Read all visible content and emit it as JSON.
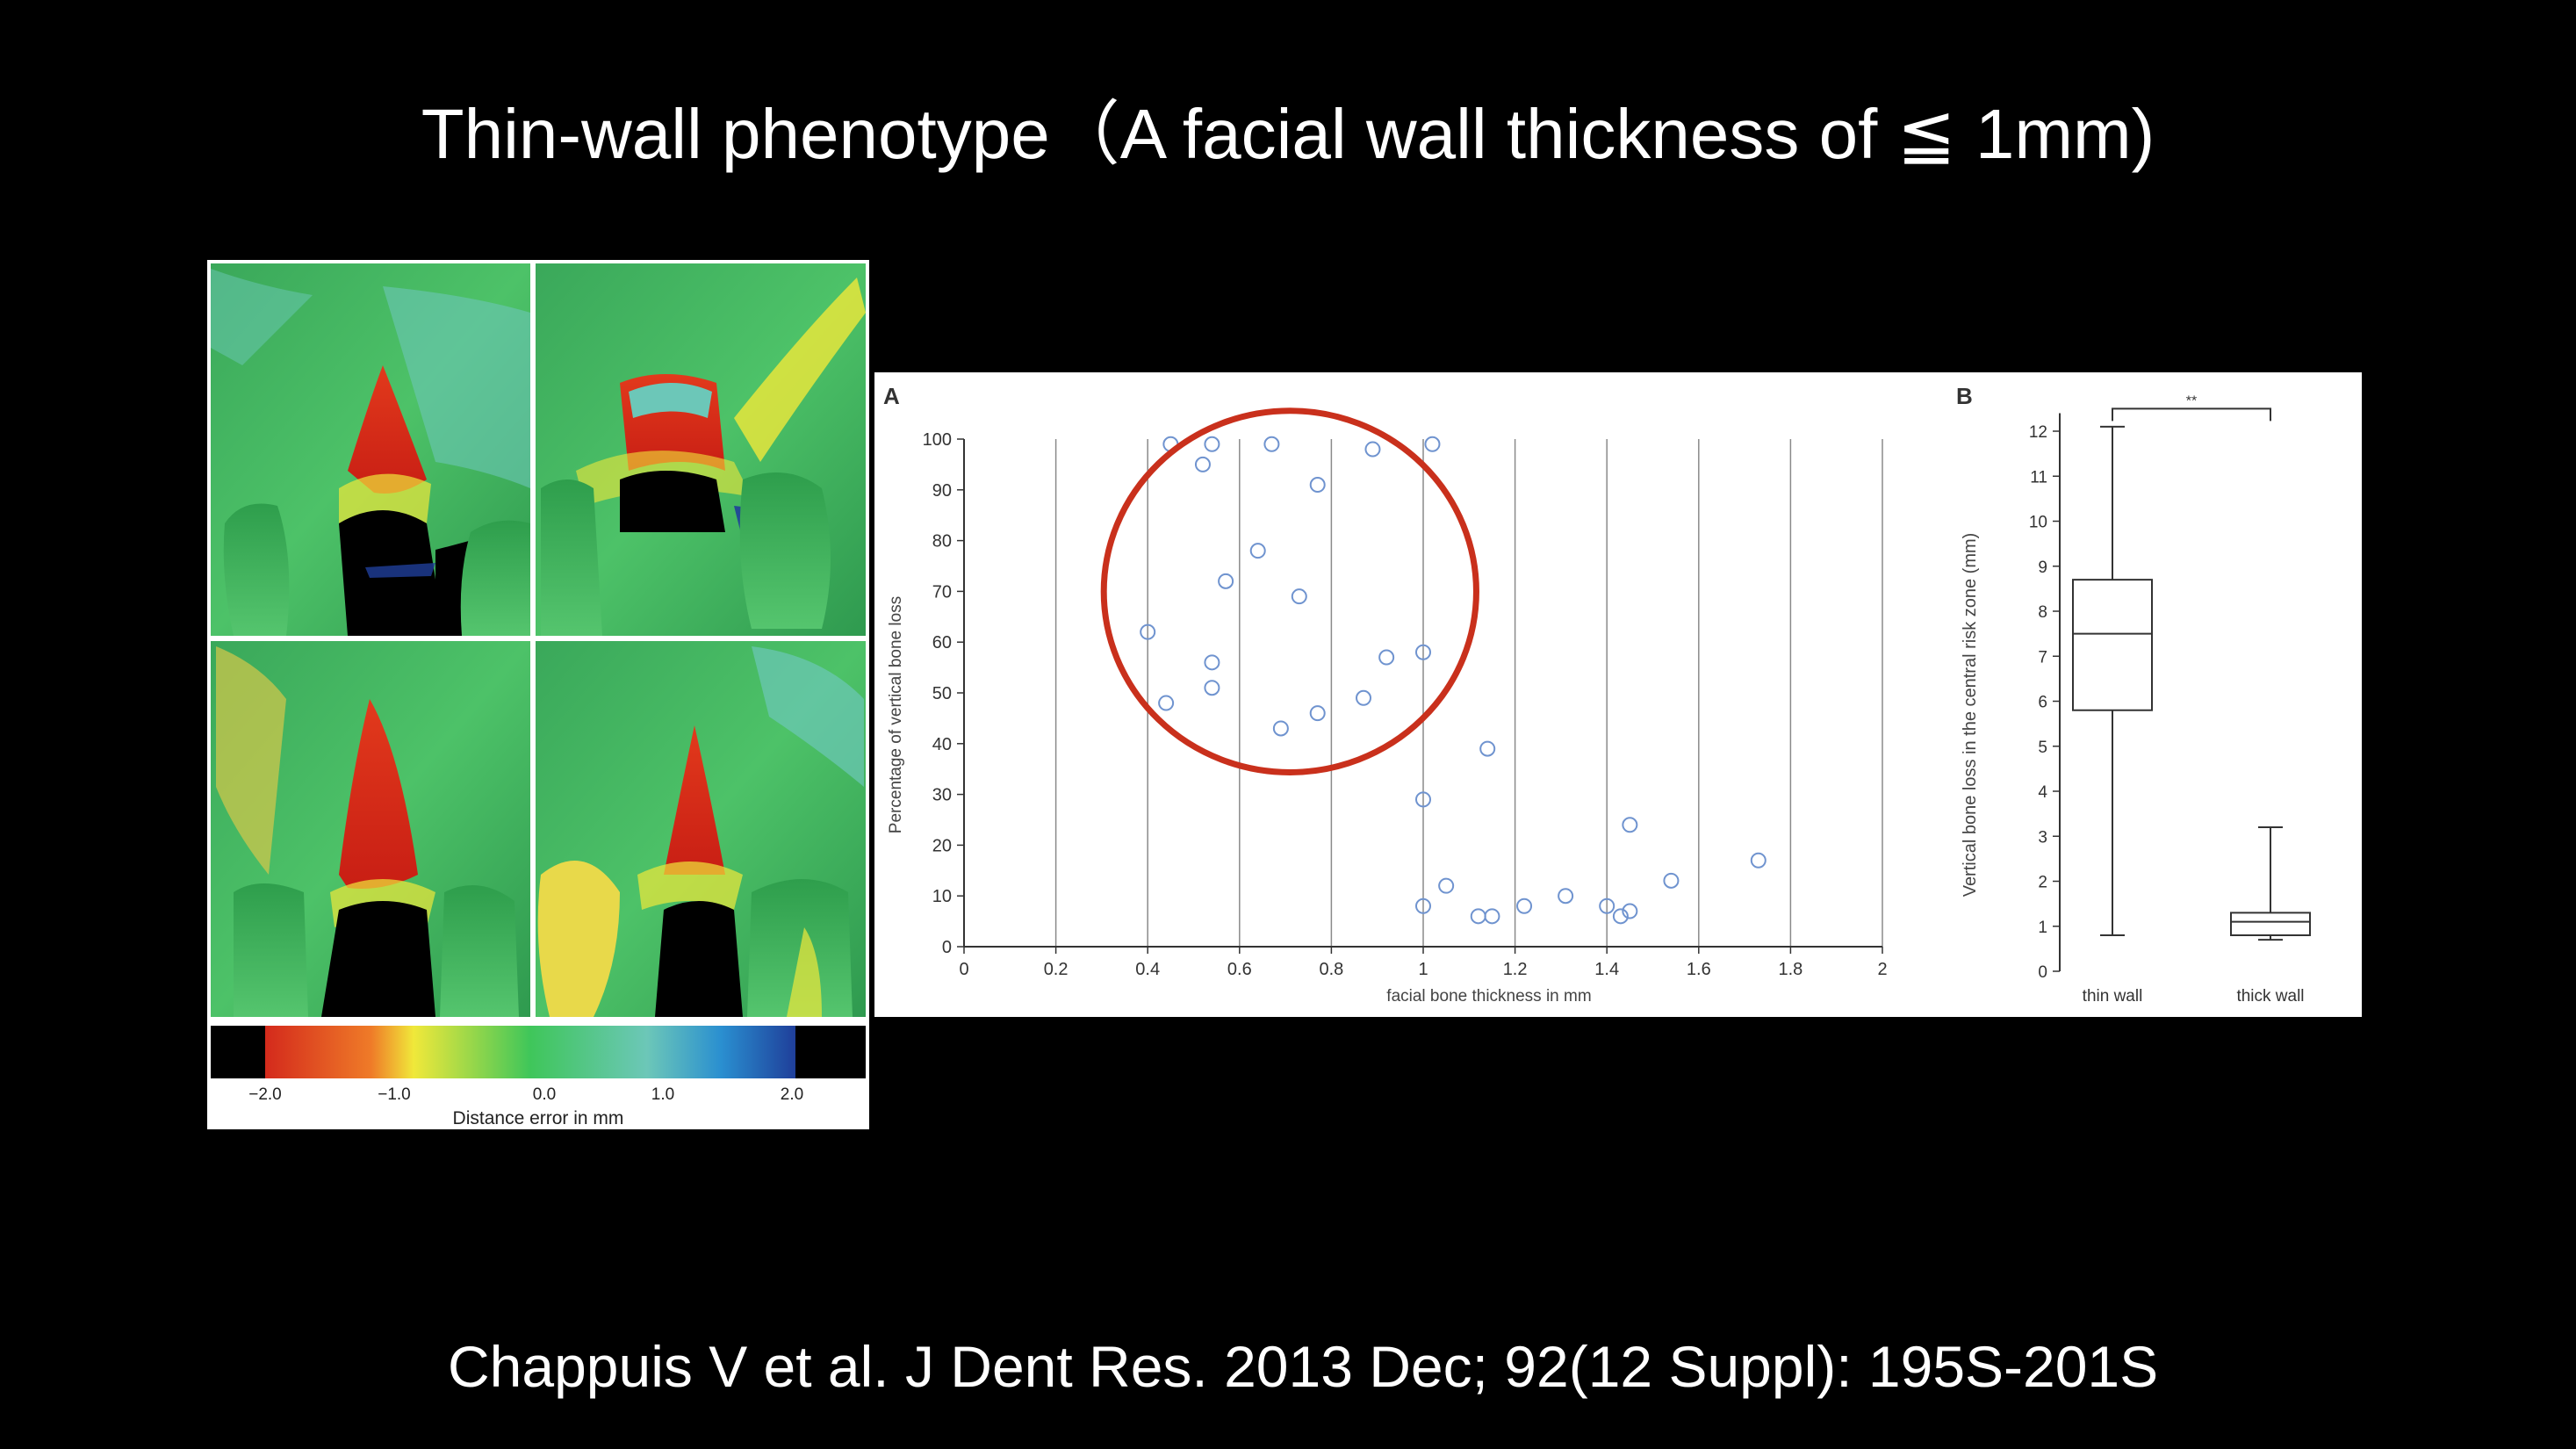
{
  "slide": {
    "title": "Thin-wall phenotype（A facial wall thickness of ≦ 1mm)",
    "citation": "Chappuis V et al. J Dent Res. 2013 Dec; 92(12 Suppl): 195S-201S"
  },
  "figure_left": {
    "colorbar_ticks": [
      "−2.0",
      "−1.0",
      "0.0",
      "1.0",
      "2.0"
    ],
    "colorbar_label": "Distance error in mm",
    "colors": [
      "#d42a1c",
      "#f0e83a",
      "#3fc65a",
      "#6cc7b8",
      "#1f3f9a"
    ]
  },
  "chart_data": [
    {
      "type": "scatter",
      "panel_label": "A",
      "xlabel": "facial bone thickness in mm",
      "ylabel": "Percentage of vertical bone loss",
      "xlim": [
        0,
        2
      ],
      "ylim": [
        0,
        100
      ],
      "x_ticks": [
        "0",
        "0.2",
        "0.4",
        "0.6",
        "0.8",
        "1",
        "1.2",
        "1.4",
        "1.6",
        "1.8",
        "2"
      ],
      "y_ticks": [
        "0",
        "10",
        "20",
        "30",
        "40",
        "50",
        "60",
        "70",
        "80",
        "90",
        "100"
      ],
      "vertical_grid": true,
      "highlight": "red ellipse around the points with thickness < 1 mm",
      "points": [
        [
          0.45,
          99
        ],
        [
          0.54,
          99
        ],
        [
          0.67,
          99
        ],
        [
          0.89,
          98
        ],
        [
          1.02,
          99
        ],
        [
          0.52,
          95
        ],
        [
          0.77,
          91
        ],
        [
          0.64,
          78
        ],
        [
          0.57,
          72
        ],
        [
          0.73,
          69
        ],
        [
          0.4,
          62
        ],
        [
          0.54,
          56
        ],
        [
          0.92,
          57
        ],
        [
          1.0,
          58
        ],
        [
          0.54,
          51
        ],
        [
          0.44,
          48
        ],
        [
          0.87,
          49
        ],
        [
          0.77,
          46
        ],
        [
          0.69,
          43
        ],
        [
          1.14,
          39
        ],
        [
          1.0,
          29
        ],
        [
          1.45,
          24
        ],
        [
          1.73,
          17
        ],
        [
          1.54,
          13
        ],
        [
          1.05,
          12
        ],
        [
          1.31,
          10
        ],
        [
          1.0,
          8
        ],
        [
          1.22,
          8
        ],
        [
          1.4,
          8
        ],
        [
          1.45,
          7
        ],
        [
          1.12,
          6
        ],
        [
          1.15,
          6
        ],
        [
          1.43,
          6
        ]
      ]
    },
    {
      "type": "box",
      "panel_label": "B",
      "ylabel": "Vertical bone loss in the central risk zone (mm)",
      "ylim": [
        0,
        12
      ],
      "y_ticks": [
        "0",
        "1",
        "2",
        "3",
        "4",
        "5",
        "6",
        "7",
        "8",
        "9",
        "10",
        "11",
        "12"
      ],
      "categories": [
        "thin wall",
        "thick wall"
      ],
      "boxes": [
        {
          "min": 0.8,
          "q1": 5.8,
          "median": 7.5,
          "q3": 8.7,
          "max": 12.1
        },
        {
          "min": 0.7,
          "q1": 0.8,
          "median": 1.1,
          "q3": 1.3,
          "max": 3.2
        }
      ],
      "significance": "**"
    }
  ]
}
